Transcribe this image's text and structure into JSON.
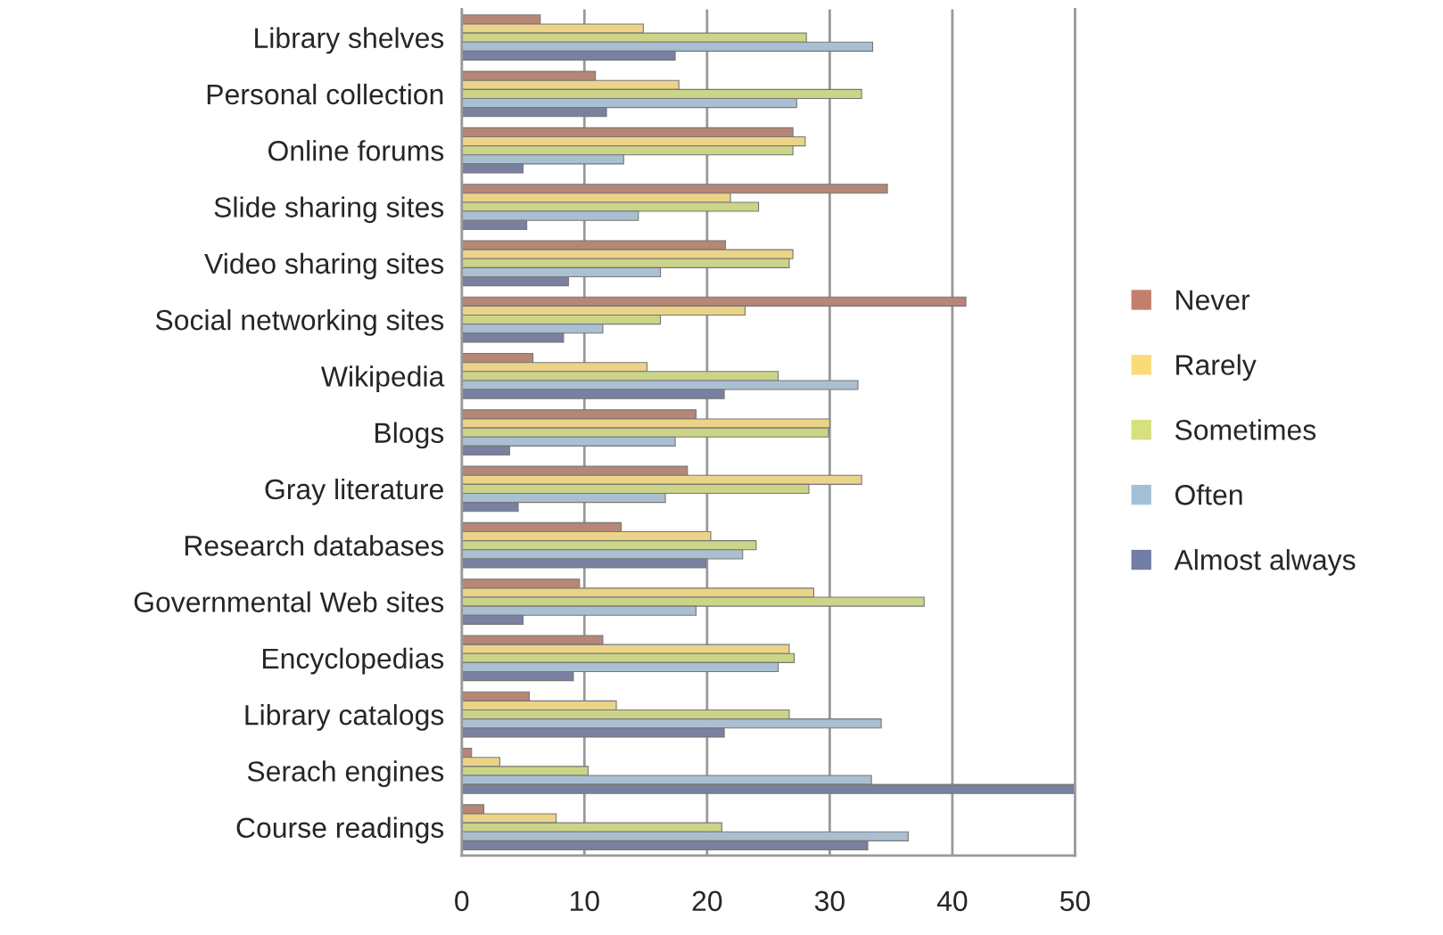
{
  "chart_data": {
    "type": "bar",
    "orientation": "horizontal",
    "categories": [
      "Library shelves",
      "Personal collection",
      "Online forums",
      "Slide sharing sites",
      "Video sharing sites",
      "Social networking sites",
      "Wikipedia",
      "Blogs",
      "Gray literature",
      "Research databases",
      "Governmental Web sites",
      "Encyclopedias",
      "Library catalogs",
      "Serach engines",
      "Course readings"
    ],
    "series": [
      {
        "name": "Never",
        "color": "#c0806c",
        "values": [
          6.4,
          10.9,
          27.0,
          34.7,
          21.5,
          41.1,
          5.8,
          19.1,
          18.4,
          13.0,
          9.6,
          11.5,
          5.5,
          0.8,
          1.8
        ]
      },
      {
        "name": "Rarely",
        "color": "#fbdb78",
        "values": [
          14.8,
          17.7,
          28.0,
          21.9,
          27.0,
          23.1,
          15.1,
          30.0,
          32.6,
          20.3,
          28.7,
          26.7,
          12.6,
          3.1,
          7.7
        ]
      },
      {
        "name": "Sometimes",
        "color": "#d6e07c",
        "values": [
          28.1,
          32.6,
          27.0,
          24.2,
          26.7,
          16.2,
          25.8,
          29.9,
          28.3,
          24.0,
          37.7,
          27.1,
          26.7,
          10.3,
          21.2
        ]
      },
      {
        "name": "Often",
        "color": "#a3c0d9",
        "values": [
          33.5,
          27.3,
          13.2,
          14.4,
          16.2,
          11.5,
          32.3,
          17.4,
          16.6,
          22.9,
          19.1,
          25.8,
          34.2,
          33.4,
          36.4
        ]
      },
      {
        "name": "Almost always",
        "color": "#737ca6",
        "values": [
          17.4,
          11.8,
          5.0,
          5.3,
          8.7,
          8.3,
          21.4,
          3.9,
          4.6,
          19.9,
          5.0,
          9.1,
          21.4,
          50,
          33.1
        ]
      }
    ],
    "xlim": [
      0,
      50
    ],
    "xticks": [
      0,
      10,
      20,
      30,
      40,
      50
    ],
    "grid": "x",
    "legend": "right"
  }
}
